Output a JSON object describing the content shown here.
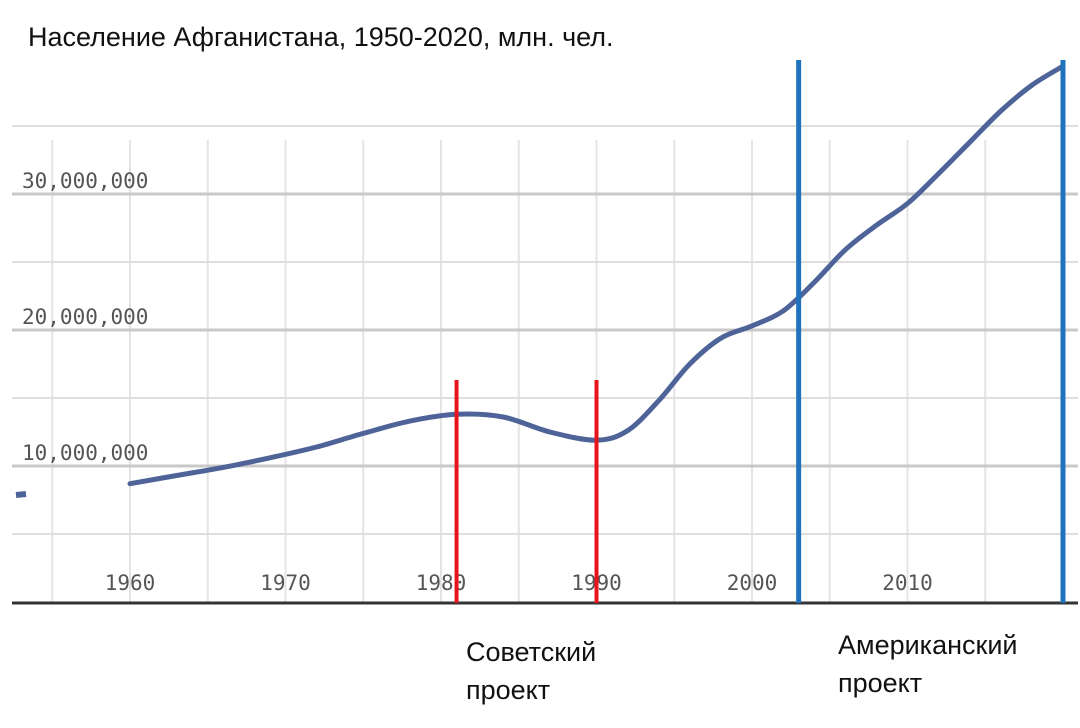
{
  "title": "Население Афганистана, 1950-2020, млн. чел.",
  "chart_data": {
    "type": "line",
    "title": "Население Афганистана, 1950-2020, млн. чел.",
    "xlabel": "",
    "ylabel": "",
    "xlim": [
      1950,
      2020
    ],
    "ylim": [
      0,
      40000000
    ],
    "x_ticks": [
      {
        "value": 1960,
        "label": "1960"
      },
      {
        "value": 1970,
        "label": "1970"
      },
      {
        "value": 1980,
        "label": "1980"
      },
      {
        "value": 1990,
        "label": "1990"
      },
      {
        "value": 2000,
        "label": "2000"
      },
      {
        "value": 2010,
        "label": "2010"
      }
    ],
    "y_ticks": [
      {
        "value": 10000000,
        "label": "10,000,000"
      },
      {
        "value": 20000000,
        "label": "20,000,000"
      },
      {
        "value": 30000000,
        "label": "30,000,000"
      }
    ],
    "grid": true,
    "series": [
      {
        "color": "#4e6499",
        "x": [
          1960,
          1963,
          1966,
          1969,
          1972,
          1975,
          1978,
          1981,
          1984,
          1987,
          1990,
          1992,
          1994,
          1996,
          1998,
          2000,
          2002,
          2004,
          2006,
          2008,
          2010,
          2012,
          2014,
          2016,
          2018,
          2020
        ],
        "y": [
          8700000,
          9300000,
          9900000,
          10600000,
          11400000,
          12400000,
          13300000,
          13800000,
          13600000,
          12500000,
          11900000,
          12600000,
          14800000,
          17500000,
          19400000,
          20300000,
          21400000,
          23500000,
          25900000,
          27700000,
          29300000,
          31500000,
          33800000,
          36100000,
          38000000,
          39400000
        ]
      }
    ],
    "markers": [
      {
        "year": 1981,
        "color": "#e8141c"
      },
      {
        "year": 1990,
        "color": "#e8141c"
      },
      {
        "year": 2003,
        "color": "#1f73bd"
      },
      {
        "year": 2020,
        "color": "#1f73bd"
      }
    ],
    "annotations": [
      {
        "lines": [
          "Советский",
          "проект"
        ]
      },
      {
        "lines": [
          "Американский",
          "проект"
        ]
      }
    ]
  }
}
